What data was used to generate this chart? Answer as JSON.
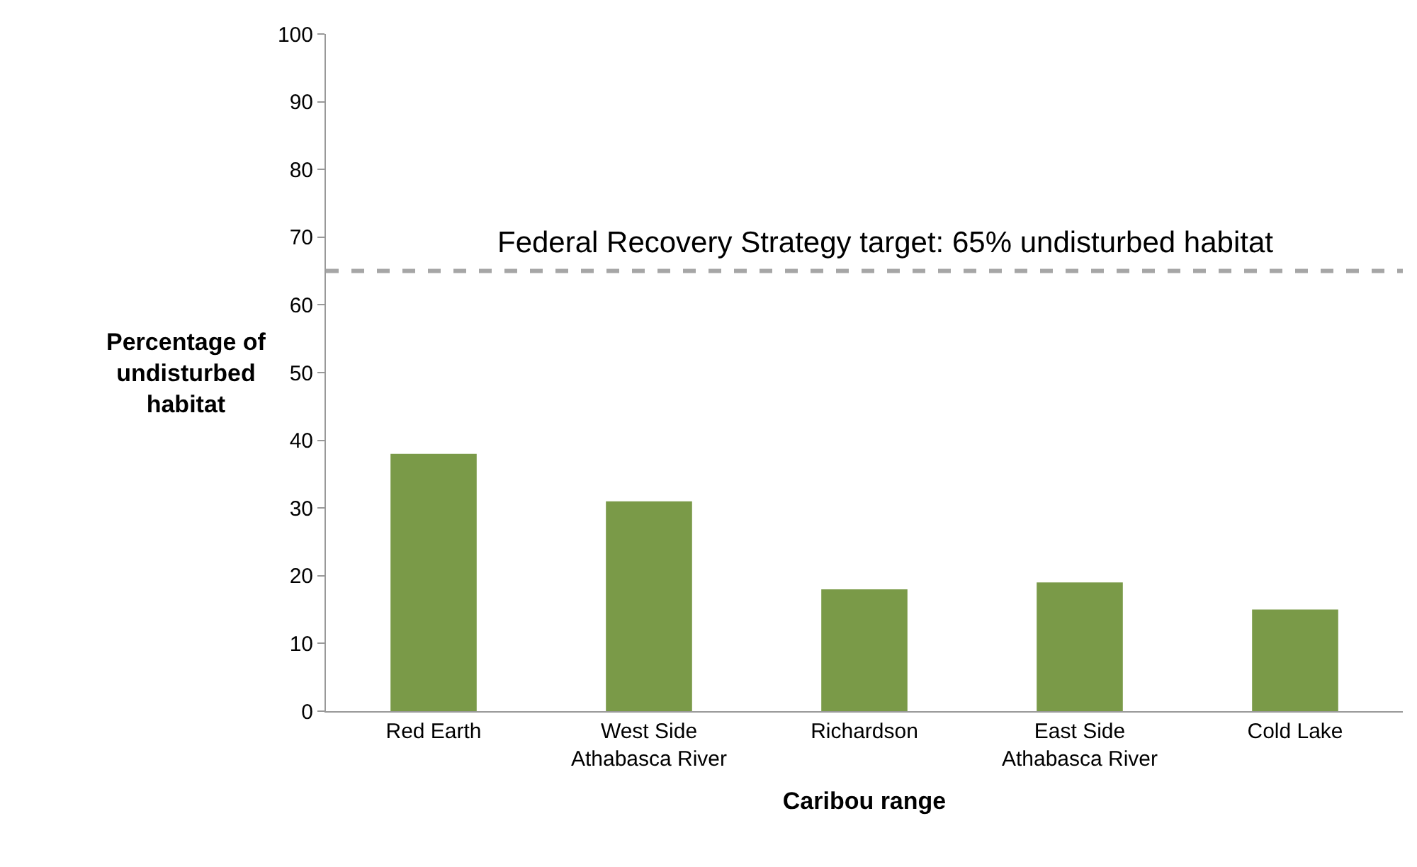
{
  "chart_data": {
    "type": "bar",
    "xlabel": "Caribou range",
    "ylabel": "Percentage of\nundisturbed\nhabitat",
    "categories": [
      "Red Earth",
      "West Side\nAthabasca River",
      "Richardson",
      "East Side\nAthabasca River",
      "Cold Lake"
    ],
    "values": [
      38,
      31,
      18,
      19,
      15
    ],
    "color": "#7a9a48",
    "ylim": [
      0,
      100
    ],
    "yticks": [
      0,
      10,
      20,
      30,
      40,
      50,
      60,
      70,
      80,
      90,
      100
    ],
    "ref_lines": [
      {
        "axis": "y",
        "value": 65,
        "label": "Federal Recovery Strategy target: 65% undisturbed habitat",
        "color": "#a6a6a6",
        "line_style": "dashed"
      }
    ]
  }
}
